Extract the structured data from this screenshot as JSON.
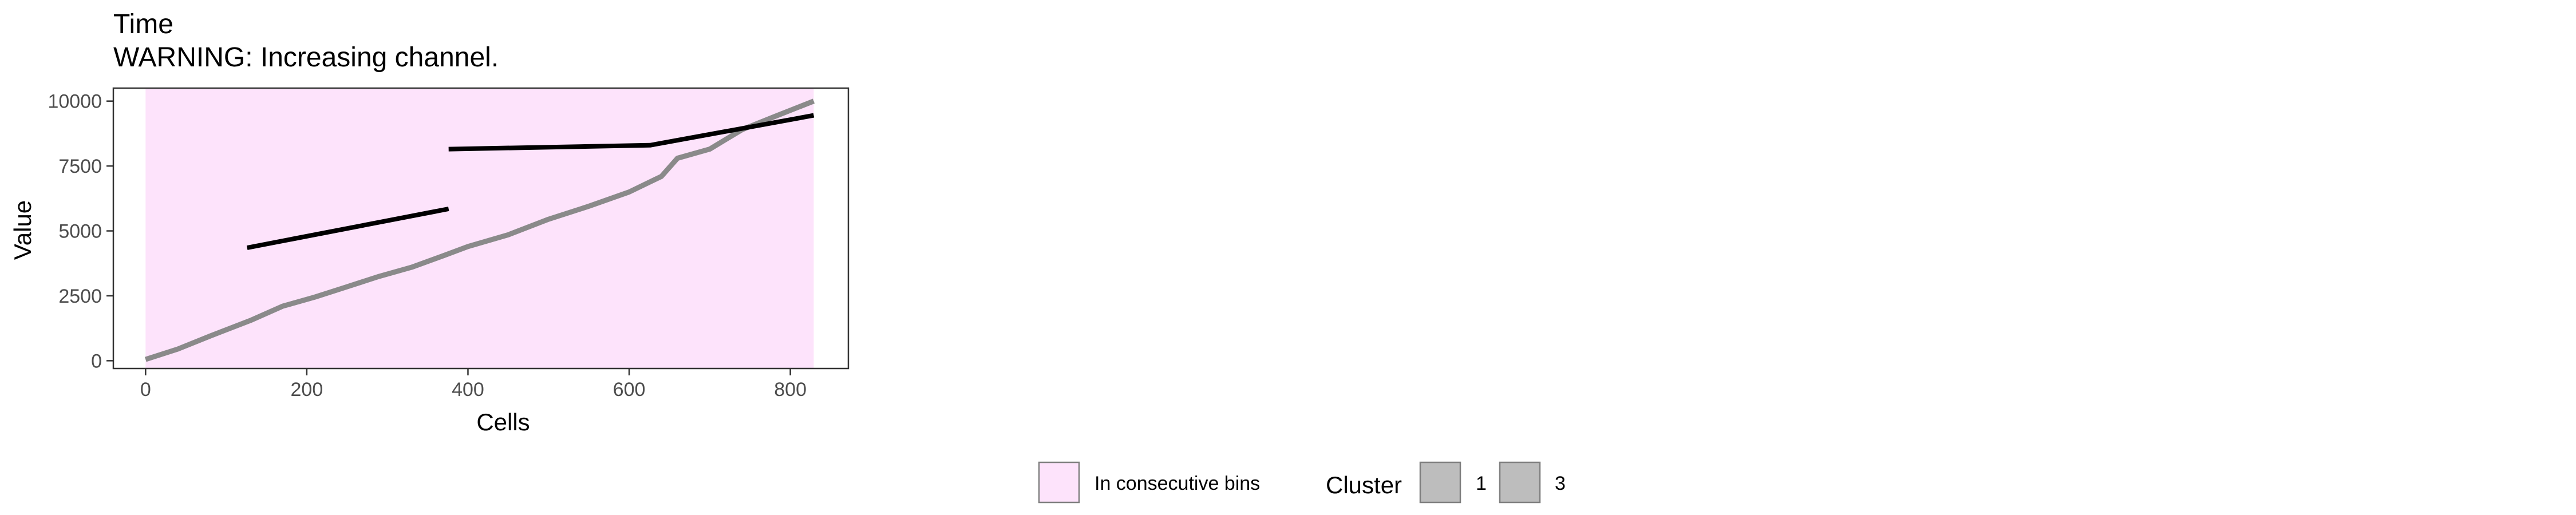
{
  "chart_data": {
    "type": "line",
    "title": "Time",
    "subtitle": "WARNING: Increasing channel.",
    "xlabel": "Cells",
    "ylabel": "Value",
    "xlim": [
      -40,
      872
    ],
    "ylim": [
      -300,
      10500
    ],
    "x_ticks": [
      0,
      200,
      400,
      600,
      800
    ],
    "y_ticks": [
      0,
      2500,
      5000,
      7500,
      10000
    ],
    "grid": false,
    "shaded_region": {
      "label": "In consecutive bins",
      "x_range": [
        0,
        829
      ],
      "y_range": [
        -300,
        10500
      ],
      "color": "#fde3fb"
    },
    "series": [
      {
        "color": "#8a8a8a",
        "x": [
          0,
          40,
          80,
          130,
          170,
          210,
          250,
          290,
          330,
          370,
          400,
          450,
          500,
          550,
          600,
          640,
          660,
          700,
          740,
          780,
          829
        ],
        "y": [
          50,
          450,
          950,
          1550,
          2100,
          2450,
          2850,
          3250,
          3600,
          4050,
          4400,
          4850,
          5450,
          5950,
          6500,
          7100,
          7800,
          8150,
          8900,
          9400,
          10000
        ]
      },
      {
        "color": "#000000",
        "x": [
          126,
          376
        ],
        "y": [
          4350,
          5850
        ]
      },
      {
        "color": "#000000",
        "x": [
          376,
          626,
          829
        ],
        "y": [
          8150,
          8300,
          9450
        ]
      }
    ],
    "legend": {
      "placement": "bottom",
      "fill_label": "In consecutive bins",
      "cluster_title": "Cluster",
      "cluster_entries": [
        "1",
        "3"
      ],
      "cluster_color": "#bdbdbd",
      "fill_color": "#fde3fb"
    }
  }
}
